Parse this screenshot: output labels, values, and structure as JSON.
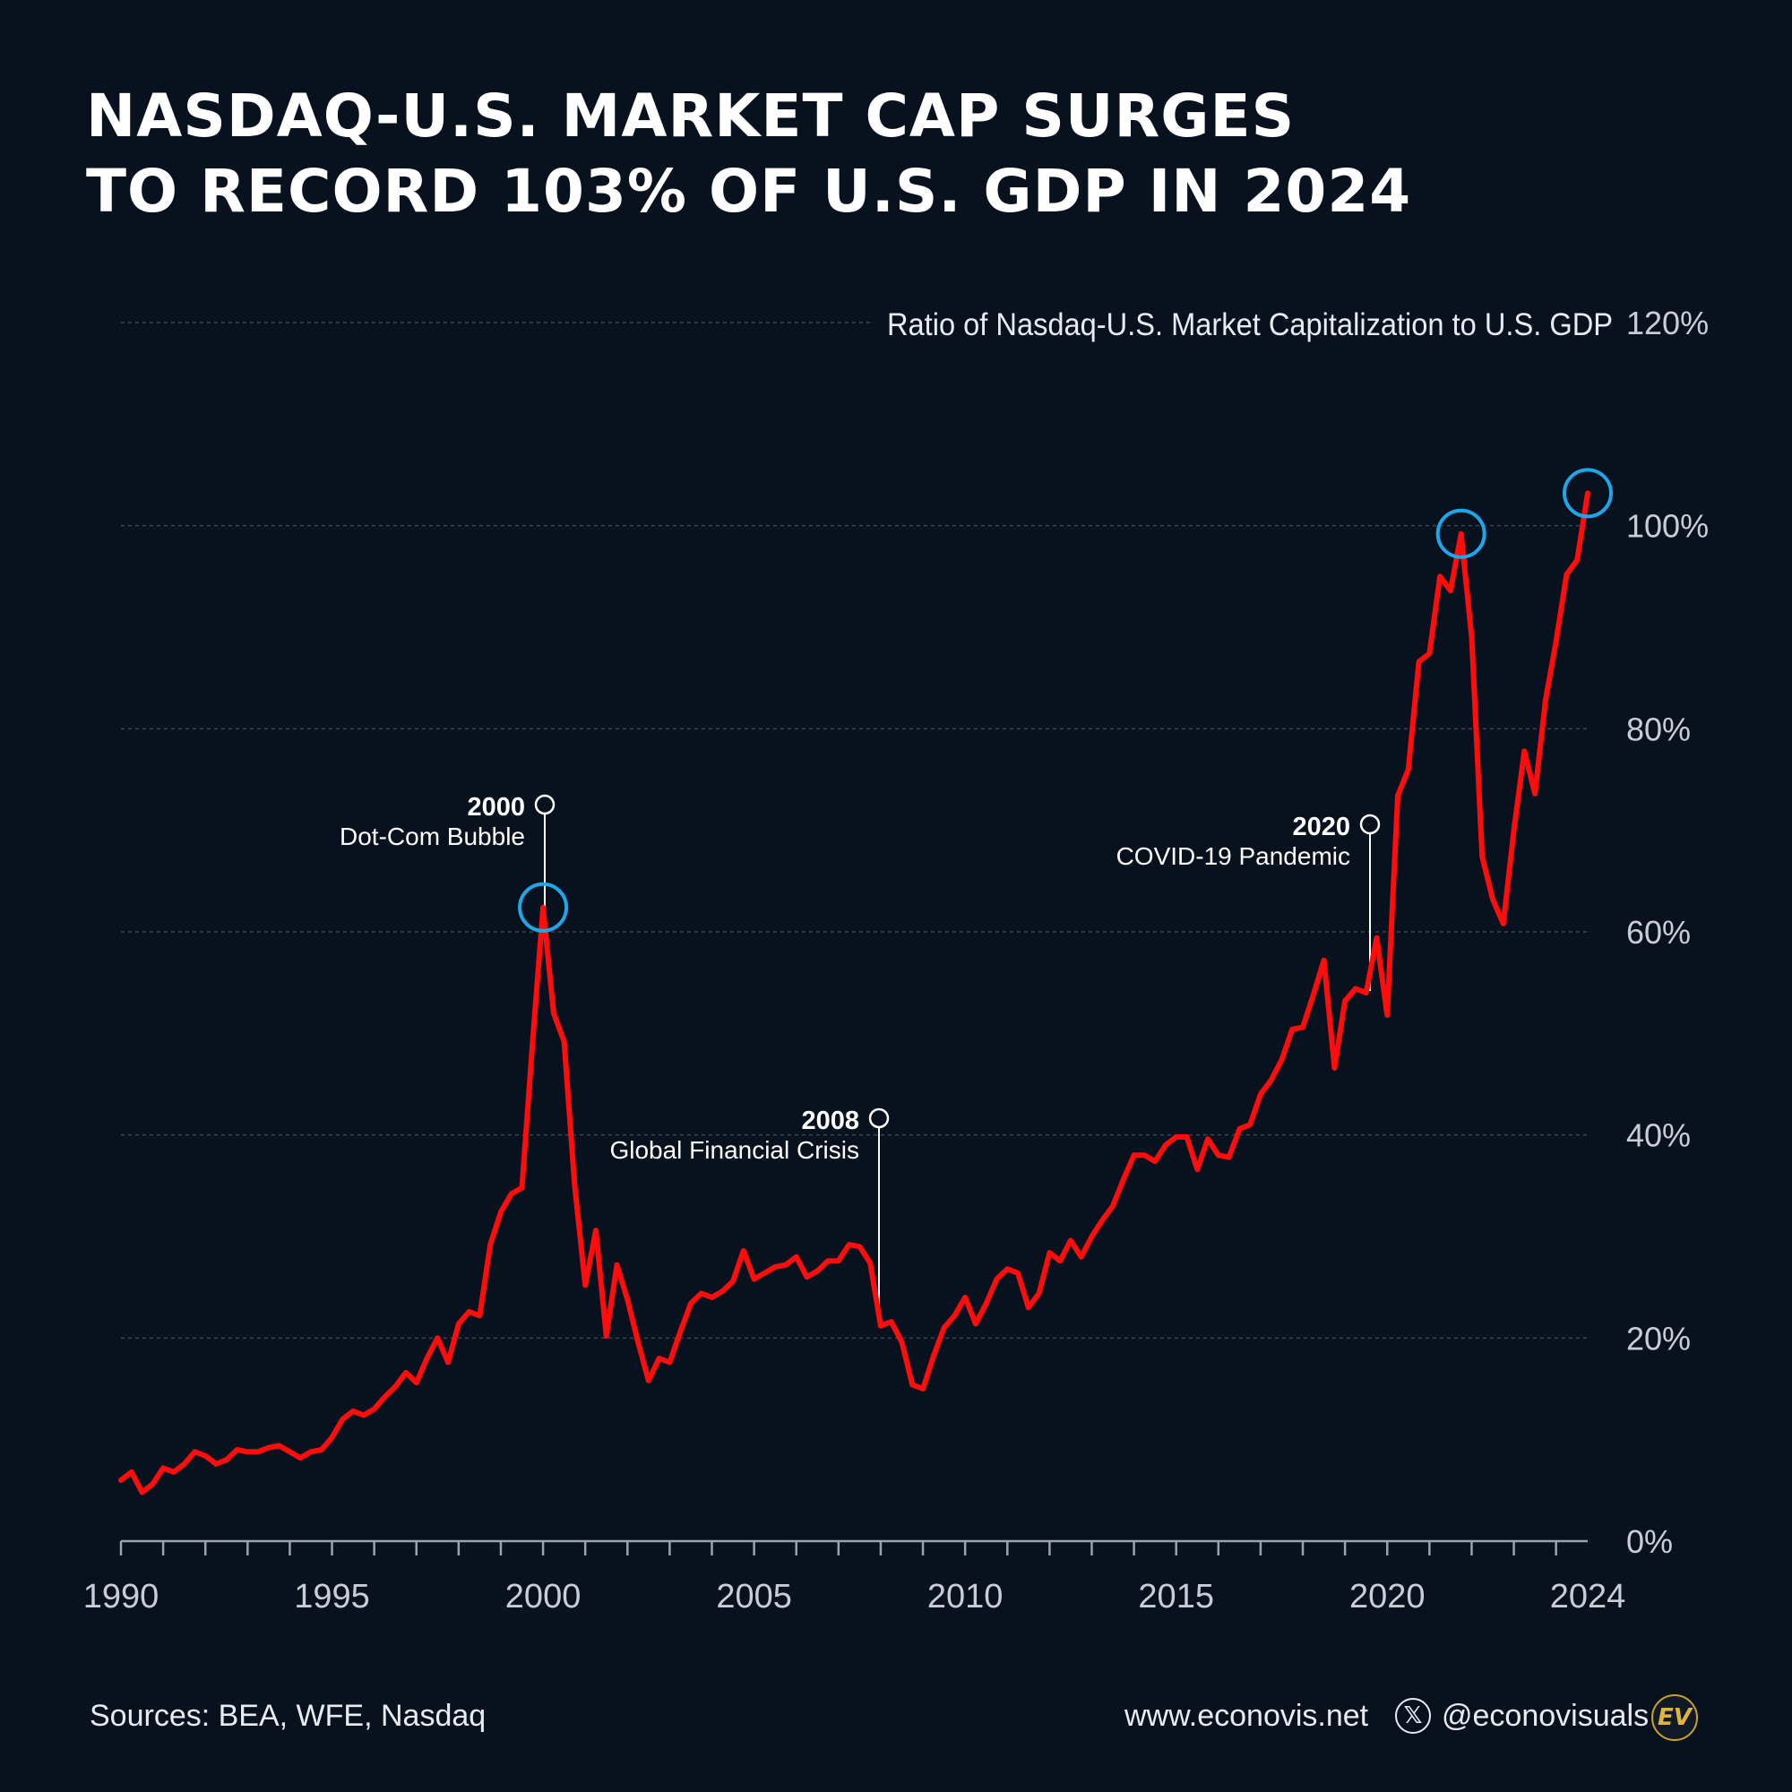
{
  "title": {
    "line1": "NASDAQ-U.S. MARKET CAP SURGES",
    "line2": "TO RECORD 103% OF U.S. GDP IN 2024"
  },
  "colors": {
    "background": "#08121f",
    "line": "#ff0d0d",
    "highlight_circle": "#1ea7e8",
    "grid": "#3a4452",
    "axis_text": "#c8ced6"
  },
  "chart_data": {
    "type": "line",
    "title": "Ratio of Nasdaq-U.S. Market Capitalization to U.S. GDP",
    "xlabel": "",
    "ylabel": "",
    "xlim": [
      1990,
      2024
    ],
    "ylim": [
      0,
      120
    ],
    "x_ticks": [
      "1990",
      "1995",
      "2000",
      "2005",
      "2010",
      "2015",
      "2020",
      "2024"
    ],
    "x_tick_values": [
      1990,
      1995,
      2000,
      2005,
      2010,
      2015,
      2020,
      2024
    ],
    "y_ticks": [
      "0%",
      "20%",
      "40%",
      "60%",
      "80%",
      "100%",
      "120%"
    ],
    "y_tick_values": [
      0,
      20,
      40,
      60,
      80,
      100,
      120
    ],
    "grid": true,
    "series": [
      {
        "name": "Nasdaq-U.S. Market Cap / U.S. GDP (%)",
        "x": [
          1990.0,
          1990.25,
          1990.5,
          1990.75,
          1991.0,
          1991.25,
          1991.5,
          1991.75,
          1992.0,
          1992.25,
          1992.5,
          1992.75,
          1993.0,
          1993.25,
          1993.5,
          1993.75,
          1994.0,
          1994.25,
          1994.5,
          1994.75,
          1995.0,
          1995.25,
          1995.5,
          1995.75,
          1996.0,
          1996.25,
          1996.5,
          1996.75,
          1997.0,
          1997.25,
          1997.5,
          1997.75,
          1998.0,
          1998.25,
          1998.5,
          1998.75,
          1999.0,
          1999.25,
          1999.5,
          1999.75,
          2000.0,
          2000.25,
          2000.5,
          2000.75,
          2001.0,
          2001.25,
          2001.5,
          2001.75,
          2002.0,
          2002.25,
          2002.5,
          2002.75,
          2003.0,
          2003.25,
          2003.5,
          2003.75,
          2004.0,
          2004.25,
          2004.5,
          2004.75,
          2005.0,
          2005.25,
          2005.5,
          2005.75,
          2006.0,
          2006.25,
          2006.5,
          2006.75,
          2007.0,
          2007.25,
          2007.5,
          2007.75,
          2008.0,
          2008.25,
          2008.5,
          2008.75,
          2009.0,
          2009.25,
          2009.5,
          2009.75,
          2010.0,
          2010.25,
          2010.5,
          2010.75,
          2011.0,
          2011.25,
          2011.5,
          2011.75,
          2012.0,
          2012.25,
          2012.5,
          2012.75,
          2013.0,
          2013.25,
          2013.5,
          2013.75,
          2014.0,
          2014.25,
          2014.5,
          2014.75,
          2015.0,
          2015.25,
          2015.5,
          2015.75,
          2016.0,
          2016.25,
          2016.5,
          2016.75,
          2017.0,
          2017.25,
          2017.5,
          2017.75,
          2018.0,
          2018.25,
          2018.5,
          2018.75,
          2019.0,
          2019.25,
          2019.5,
          2019.75,
          2020.0,
          2020.25,
          2020.5,
          2020.75,
          2021.0,
          2021.25,
          2021.5,
          2021.75,
          2022.0,
          2022.25,
          2022.5,
          2022.75,
          2023.0,
          2023.25,
          2023.5,
          2023.75,
          2024.0,
          2024.25,
          2024.5,
          2024.75
        ],
        "values": [
          6,
          6.8,
          4.8,
          5.6,
          7.2,
          6.8,
          7.6,
          8.8,
          8.4,
          7.6,
          8,
          9,
          8.8,
          8.8,
          9.2,
          9.4,
          8.8,
          8.2,
          8.8,
          9,
          10.2,
          12,
          12.8,
          12.4,
          13,
          14.2,
          15.2,
          16.6,
          15.6,
          18,
          20,
          17.6,
          21.4,
          22.6,
          22.2,
          29.2,
          32.4,
          34.2,
          34.8,
          49,
          62.4,
          52,
          49.2,
          35,
          25.2,
          30.6,
          20.2,
          27.2,
          23.8,
          19.6,
          15.8,
          18,
          17.6,
          20.6,
          23.4,
          24.4,
          24,
          24.6,
          25.6,
          28.6,
          25.8,
          26.4,
          27,
          27.2,
          28,
          26,
          26.6,
          27.6,
          27.6,
          29.2,
          29,
          27.4,
          21.2,
          21.6,
          19.6,
          15.4,
          15,
          18.2,
          21,
          22.2,
          24,
          21.4,
          23.4,
          25.8,
          26.8,
          26.4,
          23,
          24.4,
          28.4,
          27.6,
          29.6,
          28,
          30,
          31.6,
          33,
          35.6,
          38,
          38,
          37.4,
          39,
          39.8,
          39.8,
          36.6,
          39.6,
          38,
          37.8,
          40.6,
          41,
          44,
          45.4,
          47.4,
          50.4,
          50.6,
          53.8,
          57.2,
          46.6,
          53.2,
          54.4,
          54,
          59.4,
          51.8,
          73.4,
          76,
          86.6,
          87.4,
          95,
          93.6,
          99.2,
          89,
          67.4,
          63.2,
          60.8,
          70,
          77.8,
          73.6,
          82.8,
          88.6,
          95.2,
          96.6,
          103.2
        ]
      }
    ],
    "annotations": [
      {
        "year": "2000",
        "label": "Dot-Com Bubble",
        "x": 2000.0,
        "y": 62.4
      },
      {
        "year": "2008",
        "label": "Global Financial Crisis",
        "x": 2008.0,
        "y": 23.5
      },
      {
        "year": "2020",
        "label": "COVID-19 Pandemic",
        "x": 2020.0,
        "y": 55.0
      }
    ],
    "highlights": [
      {
        "x": 2000.0,
        "y": 62.4
      },
      {
        "x": 2021.75,
        "y": 99.2
      },
      {
        "x": 2024.75,
        "y": 103.2
      }
    ]
  },
  "footer": {
    "sources": "Sources: BEA, WFE, Nasdaq",
    "website": "www.econovis.net",
    "x_icon": "𝕏",
    "handle": "@econovisuals",
    "logo": "EV"
  }
}
